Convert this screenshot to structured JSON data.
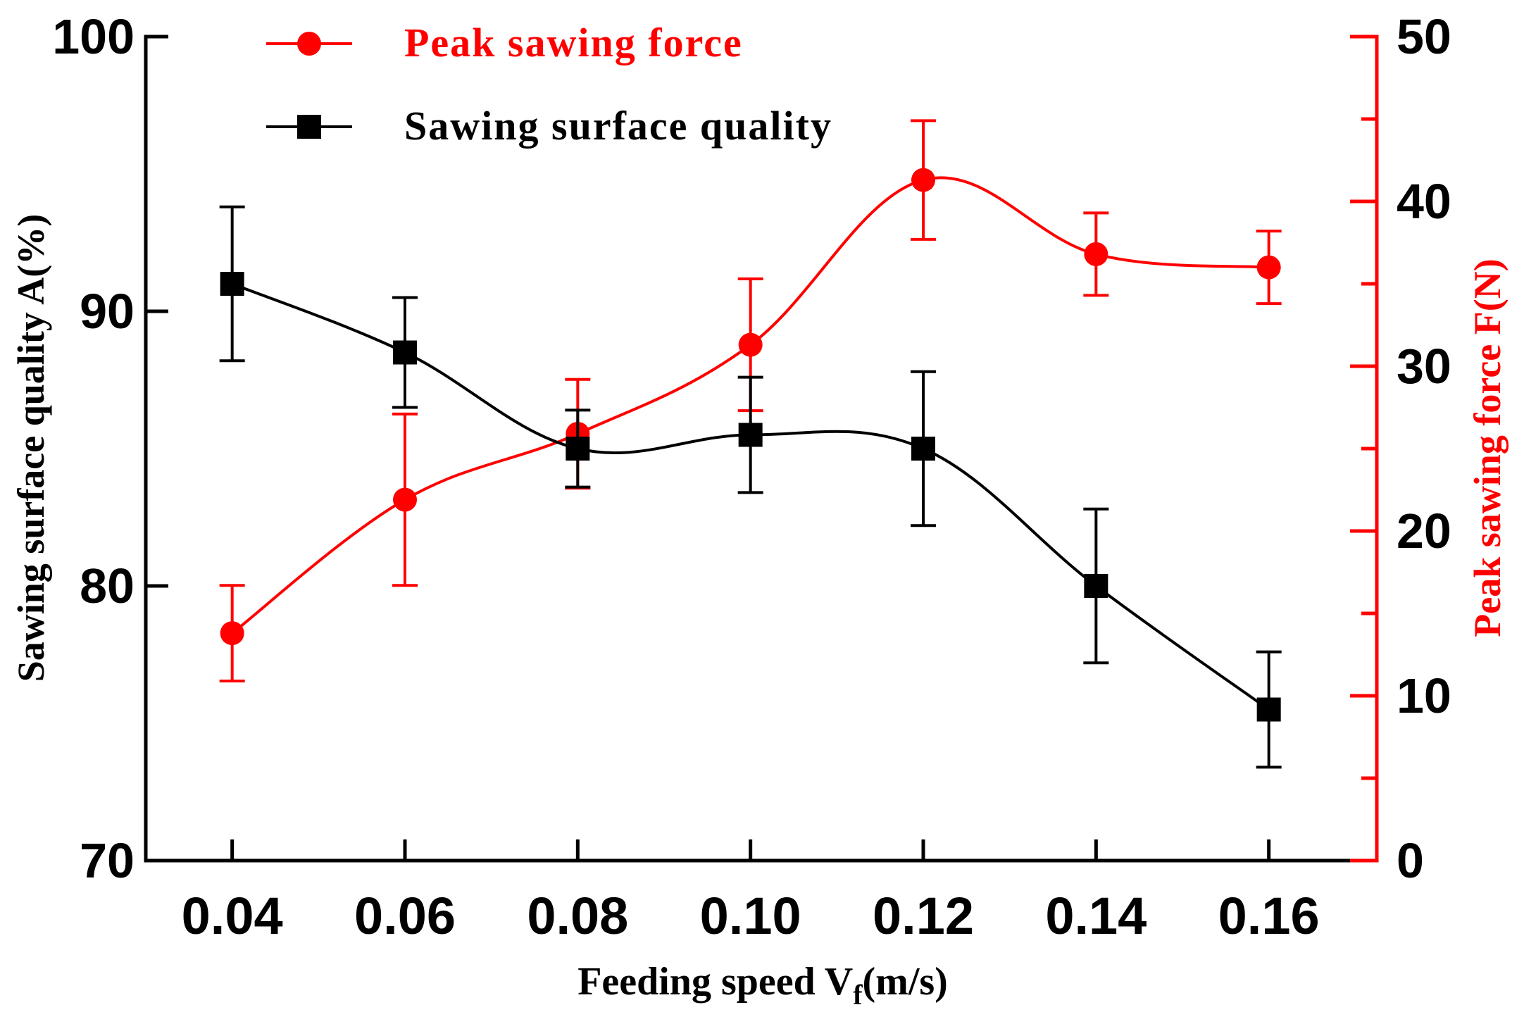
{
  "colors": {
    "quality": "#000000",
    "force": "#ff0000",
    "axis_left": "#000000",
    "axis_right": "#ff0000"
  },
  "chart_data": {
    "type": "line",
    "xlabel": {
      "main": "Feeding speed V",
      "subscript": "f",
      "unit": "(m/s)"
    },
    "ylabel_left": "Sawing surface quality A(%)",
    "ylabel_right": "Peak sawing force F(N)",
    "x": [
      0.04,
      0.06,
      0.08,
      0.1,
      0.12,
      0.14,
      0.16
    ],
    "x_tick_labels": [
      "0.04",
      "0.06",
      "0.08",
      "0.10",
      "0.12",
      "0.14",
      "0.16"
    ],
    "xlim": [
      0.03,
      0.1725
    ],
    "y_left_lim": [
      70,
      100
    ],
    "y_left_ticks": [
      "70",
      "80",
      "90",
      "100"
    ],
    "y_right_lim": [
      0,
      50
    ],
    "y_right_ticks": [
      "0",
      "10",
      "20",
      "30",
      "40",
      "50"
    ],
    "legend_position": "top-left",
    "series": [
      {
        "name": "Peak sawing force",
        "axis": "right",
        "marker": "circle",
        "values": [
          13.8,
          21.9,
          25.9,
          31.3,
          41.3,
          36.8,
          36.0
        ],
        "error": [
          2.9,
          5.2,
          3.3,
          4.0,
          3.6,
          2.5,
          2.2
        ]
      },
      {
        "name": "Sawing surface quality",
        "axis": "left",
        "marker": "square",
        "values": [
          91.0,
          88.5,
          85.0,
          85.5,
          85.0,
          80.0,
          75.5
        ],
        "error": [
          2.8,
          2.0,
          1.4,
          2.1,
          2.8,
          2.8,
          2.1
        ]
      }
    ]
  }
}
